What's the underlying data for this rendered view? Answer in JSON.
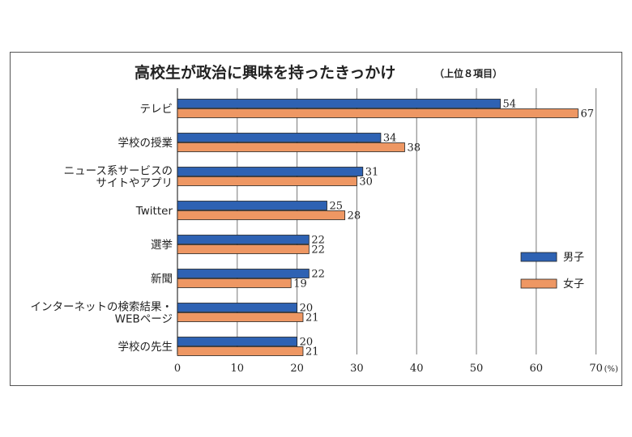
{
  "chart_data": {
    "type": "bar",
    "orientation": "horizontal",
    "title": "高校生が政治に興味を持ったきっかけ",
    "subtitle": "（上位８項目）",
    "categories": [
      [
        "テレビ"
      ],
      [
        "学校の授業"
      ],
      [
        "ニュース系サービスの",
        "サイトやアプリ"
      ],
      [
        "Twitter"
      ],
      [
        "選挙"
      ],
      [
        "新聞"
      ],
      [
        "インターネットの検索結果・",
        "WEBページ"
      ],
      [
        "学校の先生"
      ]
    ],
    "series": [
      {
        "name": "男子",
        "color": "#2e62b3",
        "values": [
          54,
          34,
          31,
          25,
          22,
          22,
          20,
          20
        ]
      },
      {
        "name": "女子",
        "color": "#ee9763",
        "values": [
          67,
          38,
          30,
          28,
          22,
          19,
          21,
          21
        ]
      }
    ],
    "xlim": [
      0,
      70
    ],
    "xticks": [
      0,
      10,
      20,
      30,
      40,
      50,
      60,
      70
    ],
    "unit": "(%)",
    "grid": true,
    "legend_position": "right"
  }
}
